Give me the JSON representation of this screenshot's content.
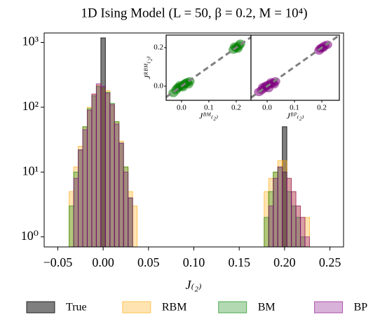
{
  "chart_data": [
    {
      "type": "histogram",
      "title": "1D Ising Model (L = 50, β = 0.2, M = 10⁴)",
      "xlabel": "J₍₂₎",
      "log_y": true,
      "legend": "bottom",
      "bins": [
        -0.0375,
        -0.0325,
        -0.0275,
        -0.0225,
        -0.0175,
        -0.0125,
        -0.0075,
        -0.0025,
        0.0025,
        0.0075,
        0.0125,
        0.0175,
        0.0225,
        0.0275,
        0.0325,
        0.0375,
        0.0425,
        0.0475,
        0.0525,
        0.0575,
        0.0625,
        0.0675,
        0.0725,
        0.0775,
        0.0825,
        0.0875,
        0.0925,
        0.0975,
        0.1025,
        0.1075,
        0.1125,
        0.1175,
        0.1225,
        0.1275,
        0.1325,
        0.1375,
        0.1425,
        0.1475,
        0.1525,
        0.1575,
        0.1625,
        0.1675,
        0.1725,
        0.1775,
        0.1825,
        0.1875,
        0.1925,
        0.1975,
        0.2025,
        0.2075,
        0.2125,
        0.2175,
        0.2225,
        0.2275,
        0.2325
      ],
      "series": [
        {
          "name": "True",
          "color": "#000000",
          "alpha": 0.5,
          "values": [
            0,
            0,
            0,
            0,
            0,
            0,
            0,
            1175,
            0,
            0,
            0,
            0,
            0,
            0,
            0,
            0,
            0,
            0,
            0,
            0,
            0,
            0,
            0,
            0,
            0,
            0,
            0,
            0,
            0,
            0,
            0,
            0,
            0,
            0,
            0,
            0,
            0,
            0,
            0,
            0,
            0,
            0,
            0,
            0,
            0,
            0,
            0,
            50,
            0,
            0,
            0,
            0,
            0,
            0
          ]
        },
        {
          "name": "RBM",
          "color": "#ffa500",
          "alpha": 0.3,
          "values": [
            5,
            12,
            25,
            50,
            100,
            160,
            220,
            200,
            180,
            110,
            60,
            30,
            12,
            5,
            3,
            0,
            0,
            0,
            0,
            0,
            0,
            0,
            0,
            0,
            0,
            0,
            0,
            0,
            0,
            0,
            0,
            0,
            0,
            0,
            0,
            0,
            0,
            0,
            0,
            0,
            0,
            0,
            0,
            5,
            8,
            10,
            15,
            15,
            8,
            5,
            3,
            2,
            2,
            0
          ]
        },
        {
          "name": "BM",
          "color": "#008000",
          "alpha": 0.3,
          "values": [
            3,
            10,
            22,
            50,
            95,
            150,
            210,
            200,
            170,
            115,
            60,
            28,
            12,
            4,
            0,
            0,
            0,
            0,
            0,
            0,
            0,
            0,
            0,
            0,
            0,
            0,
            0,
            0,
            0,
            0,
            0,
            0,
            0,
            0,
            0,
            0,
            0,
            0,
            0,
            0,
            0,
            0,
            0,
            2,
            5,
            10,
            12,
            10,
            5,
            3,
            2,
            1,
            0,
            0
          ]
        },
        {
          "name": "BP",
          "color": "#800080",
          "alpha": 0.3,
          "values": [
            0,
            8,
            22,
            45,
            90,
            160,
            230,
            210,
            165,
            110,
            55,
            28,
            10,
            4,
            0,
            0,
            0,
            0,
            0,
            0,
            0,
            0,
            0,
            0,
            0,
            0,
            0,
            0,
            0,
            0,
            0,
            0,
            0,
            0,
            0,
            0,
            0,
            0,
            0,
            0,
            0,
            0,
            0,
            0,
            3,
            8,
            12,
            10,
            8,
            5,
            3,
            2,
            1,
            0
          ]
        }
      ],
      "xlim": [
        -0.065,
        0.265
      ],
      "xticks": [
        {
          "value": -0.05,
          "label": "−0.05"
        },
        {
          "value": 0,
          "label": "0.00"
        },
        0.05,
        {
          "value": 0.1,
          "label": "0.10"
        },
        0.15,
        {
          "value": 0.2,
          "label": "0.20"
        },
        0.25
      ],
      "ylim": [
        0.7,
        1400
      ],
      "yticks": [
        {
          "value": 1,
          "label": "10⁰"
        },
        {
          "value": 10,
          "label": "10¹"
        },
        {
          "value": 100,
          "label": "10²"
        },
        {
          "value": 1000,
          "label": "10³"
        }
      ]
    },
    {
      "type": "scatter",
      "diagonal": true,
      "xlabel": "Jᴮᴹ₍₂₎",
      "ylabel": "Jᴿᴮᴹ₍₂₎",
      "xlim": [
        -0.056,
        0.254
      ],
      "ylim": [
        -0.073,
        0.265
      ],
      "xticks": [
        {
          "value": 0,
          "label": "0.0"
        },
        0.1,
        {
          "value": 0.2,
          "label": "0.2"
        }
      ],
      "yticks": [
        {
          "value": 0,
          "label": "0.0"
        },
        {
          "value": 0.2,
          "label": "0.2"
        }
      ],
      "series": [
        {
          "color": "#008000",
          "x": [
            -0.03,
            -0.02,
            -0.01,
            0,
            0.01,
            0.02,
            0.03,
            -0.015,
            0.005,
            0.015,
            0.025,
            -0.005,
            0.19,
            0.2,
            0.21,
            0.205,
            0.195,
            0.215
          ],
          "y": [
            -0.035,
            -0.02,
            -0.005,
            0,
            0.01,
            0.02,
            0.025,
            -0.01,
            -0.005,
            0.015,
            0.01,
            0.005,
            0.19,
            0.2,
            0.21,
            0.195,
            0.205,
            0.22
          ]
        }
      ]
    },
    {
      "type": "scatter",
      "diagonal": true,
      "xlabel": "Jᴮᴾ₍₂₎",
      "xlim": [
        -0.059,
        0.264
      ],
      "ylim": [
        -0.073,
        0.265
      ],
      "xticks": [
        {
          "value": 0,
          "label": "0.0"
        },
        0.1,
        {
          "value": 0.2,
          "label": "0.2"
        }
      ],
      "series": [
        {
          "color": "#800080",
          "x": [
            -0.03,
            -0.02,
            -0.01,
            0,
            0.01,
            0.02,
            0.03,
            -0.015,
            0.005,
            0.015,
            0.025,
            -0.005,
            0.19,
            0.2,
            0.21,
            0.205,
            0.195,
            0.22
          ],
          "y": [
            -0.03,
            -0.02,
            -0.01,
            0.005,
            0.01,
            0.015,
            0.025,
            -0.005,
            -0.01,
            0.02,
            0.01,
            0,
            0.185,
            0.2,
            0.21,
            0.2,
            0.195,
            0.215
          ]
        }
      ]
    }
  ]
}
